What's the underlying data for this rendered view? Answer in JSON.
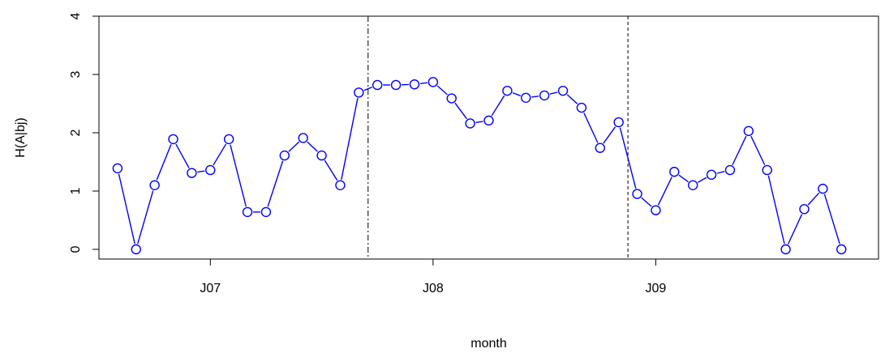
{
  "chart_data": {
    "type": "line",
    "xlabel": "month",
    "ylabel": "H(A|bj)",
    "ylim": [
      0,
      4
    ],
    "xlim": [
      0,
      42
    ],
    "y_ticks": [
      "0",
      "1",
      "2",
      "3",
      "4"
    ],
    "x_tick_labels": [
      {
        "label": "J07",
        "x": 6
      },
      {
        "label": "J08",
        "x": 18
      },
      {
        "label": "J09",
        "x": 30
      }
    ],
    "vertical_lines": [
      {
        "x": 14.5,
        "style": "dotdash"
      },
      {
        "x": 28.5,
        "style": "dashed"
      }
    ],
    "color": "#0000ff",
    "series": [
      {
        "x": [
          1,
          2,
          3,
          4,
          5,
          6,
          7,
          8,
          9,
          10,
          11,
          12,
          13,
          14,
          15,
          16,
          17,
          18,
          19,
          20,
          21,
          22,
          23,
          24,
          25,
          26,
          27,
          28,
          29,
          30,
          31,
          32,
          33,
          34,
          35,
          36,
          37,
          38,
          39,
          40
        ],
        "values": [
          1.39,
          0.0,
          1.1,
          1.89,
          1.31,
          1.36,
          1.89,
          0.64,
          0.64,
          1.61,
          1.91,
          1.61,
          1.1,
          2.69,
          2.82,
          2.82,
          2.83,
          2.87,
          2.59,
          2.16,
          2.21,
          2.72,
          2.6,
          2.64,
          2.72,
          2.43,
          1.74,
          2.18,
          0.95,
          0.67,
          1.33,
          1.1,
          1.28,
          1.36,
          2.03,
          1.36,
          0.0,
          0.69,
          1.04,
          0.0
        ]
      }
    ]
  }
}
